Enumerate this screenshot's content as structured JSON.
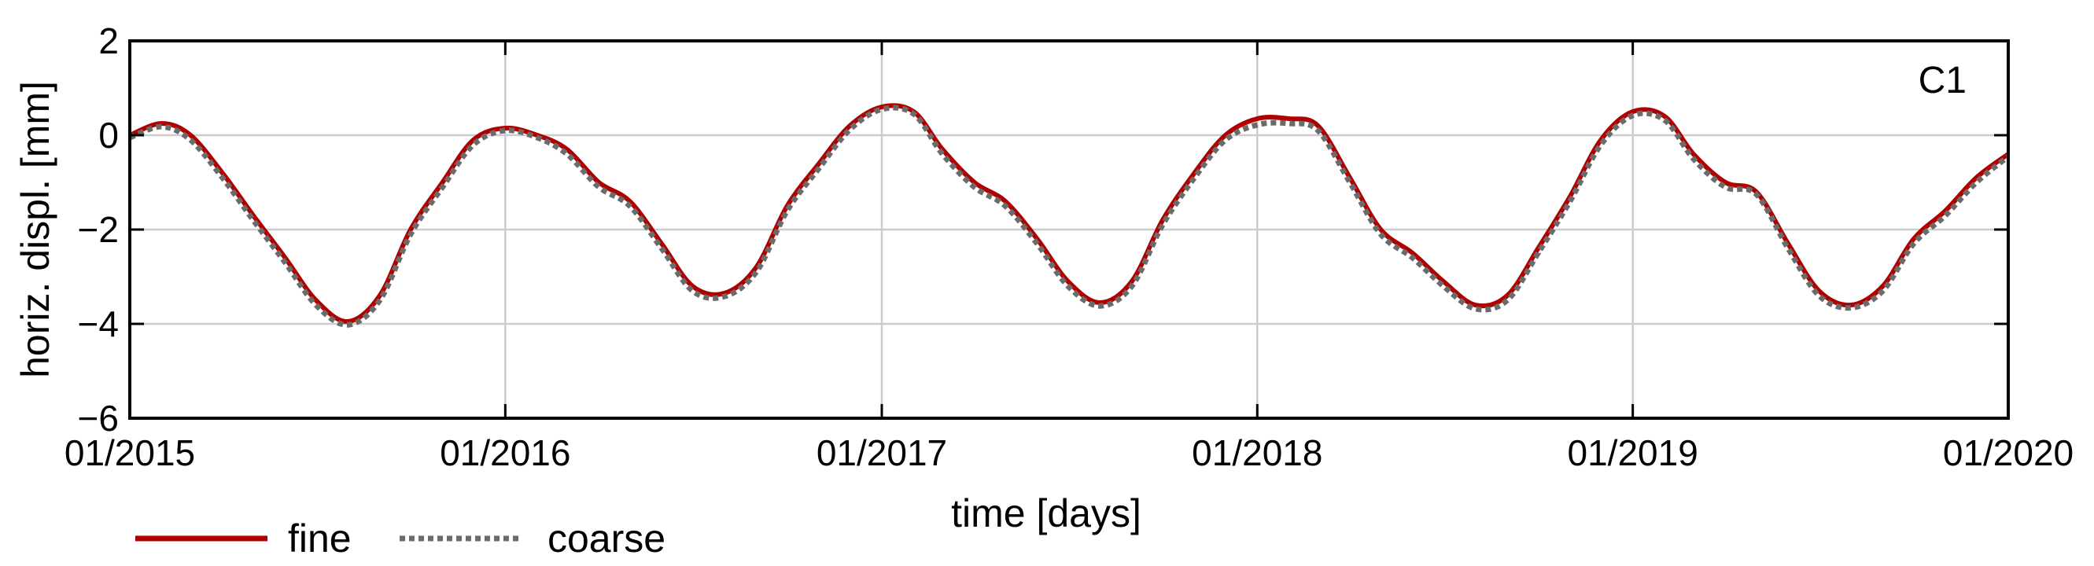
{
  "chart_data": {
    "type": "line",
    "panel_label": "C1",
    "xlabel": "time [days]",
    "ylabel": "horiz. displ. [mm]",
    "xlim": [
      "2015-01-01",
      "2020-01-01"
    ],
    "ylim": [
      -6,
      2
    ],
    "x_ticks": [
      "01/2015",
      "01/2016",
      "01/2017",
      "01/2018",
      "01/2019",
      "01/2020"
    ],
    "y_ticks": [
      "2",
      "0",
      "−2",
      "−4",
      "−6"
    ],
    "y_tick_values": [
      2,
      0,
      -2,
      -4,
      -6
    ],
    "grid": true,
    "legend_position": "bottom-left",
    "colors": {
      "fine": "#b00000",
      "coarse": "#6b6b6b"
    },
    "series": [
      {
        "name": "fine",
        "style": "solid",
        "x": [
          "2015-01-01",
          "2015-02-01",
          "2015-03-01",
          "2015-04-01",
          "2015-05-01",
          "2015-06-01",
          "2015-07-01",
          "2015-08-01",
          "2015-09-01",
          "2015-10-01",
          "2015-11-01",
          "2015-12-01",
          "2016-01-01",
          "2016-02-01",
          "2016-03-01",
          "2016-04-01",
          "2016-05-01",
          "2016-06-01",
          "2016-07-01",
          "2016-08-01",
          "2016-09-01",
          "2016-10-01",
          "2016-11-01",
          "2016-12-01",
          "2017-01-01",
          "2017-02-01",
          "2017-03-01",
          "2017-04-01",
          "2017-05-01",
          "2017-06-01",
          "2017-07-01",
          "2017-08-01",
          "2017-09-01",
          "2017-10-01",
          "2017-11-01",
          "2017-12-01",
          "2018-01-01",
          "2018-02-01",
          "2018-03-01",
          "2018-04-01",
          "2018-05-01",
          "2018-06-01",
          "2018-07-01",
          "2018-08-01",
          "2018-09-01",
          "2018-10-01",
          "2018-11-01",
          "2018-12-01",
          "2019-01-01",
          "2019-02-01",
          "2019-03-01",
          "2019-04-01",
          "2019-05-01",
          "2019-06-01",
          "2019-07-01",
          "2019-08-01",
          "2019-09-01",
          "2019-10-01",
          "2019-11-01",
          "2019-12-01",
          "2020-01-01"
        ],
        "y": [
          0.0,
          0.25,
          0.0,
          -0.8,
          -1.7,
          -2.6,
          -3.5,
          -3.95,
          -3.4,
          -2.0,
          -1.0,
          -0.1,
          0.15,
          0.0,
          -0.3,
          -1.0,
          -1.4,
          -2.3,
          -3.2,
          -3.35,
          -2.8,
          -1.5,
          -0.6,
          0.2,
          0.6,
          0.5,
          -0.3,
          -1.0,
          -1.4,
          -2.2,
          -3.1,
          -3.55,
          -3.1,
          -1.8,
          -0.8,
          0.0,
          0.35,
          0.35,
          0.2,
          -0.9,
          -2.0,
          -2.5,
          -3.1,
          -3.6,
          -3.4,
          -2.4,
          -1.3,
          -0.1,
          0.5,
          0.4,
          -0.4,
          -1.0,
          -1.2,
          -2.3,
          -3.3,
          -3.6,
          -3.2,
          -2.2,
          -1.6,
          -0.9,
          -0.4
        ]
      },
      {
        "name": "coarse",
        "style": "dotted",
        "x": [
          "2015-01-01",
          "2015-02-01",
          "2015-03-01",
          "2015-04-01",
          "2015-05-01",
          "2015-06-01",
          "2015-07-01",
          "2015-08-01",
          "2015-09-01",
          "2015-10-01",
          "2015-11-01",
          "2015-12-01",
          "2016-01-01",
          "2016-02-01",
          "2016-03-01",
          "2016-04-01",
          "2016-05-01",
          "2016-06-01",
          "2016-07-01",
          "2016-08-01",
          "2016-09-01",
          "2016-10-01",
          "2016-11-01",
          "2016-12-01",
          "2017-01-01",
          "2017-02-01",
          "2017-03-01",
          "2017-04-01",
          "2017-05-01",
          "2017-06-01",
          "2017-07-01",
          "2017-08-01",
          "2017-09-01",
          "2017-10-01",
          "2017-11-01",
          "2017-12-01",
          "2018-01-01",
          "2018-02-01",
          "2018-03-01",
          "2018-04-01",
          "2018-05-01",
          "2018-06-01",
          "2018-07-01",
          "2018-08-01",
          "2018-09-01",
          "2018-10-01",
          "2018-11-01",
          "2018-12-01",
          "2019-01-01",
          "2019-02-01",
          "2019-03-01",
          "2019-04-01",
          "2019-05-01",
          "2019-06-01",
          "2019-07-01",
          "2019-08-01",
          "2019-09-01",
          "2019-10-01",
          "2019-11-01",
          "2019-12-01",
          "2020-01-01"
        ],
        "y": [
          -0.05,
          0.18,
          -0.1,
          -0.9,
          -1.8,
          -2.7,
          -3.6,
          -4.02,
          -3.5,
          -2.1,
          -1.1,
          -0.2,
          0.1,
          -0.05,
          -0.4,
          -1.1,
          -1.5,
          -2.4,
          -3.3,
          -3.42,
          -2.9,
          -1.6,
          -0.7,
          0.12,
          0.55,
          0.45,
          -0.4,
          -1.1,
          -1.5,
          -2.3,
          -3.2,
          -3.62,
          -3.2,
          -1.9,
          -0.9,
          -0.1,
          0.22,
          0.25,
          0.1,
          -1.0,
          -2.1,
          -2.6,
          -3.2,
          -3.68,
          -3.5,
          -2.5,
          -1.4,
          -0.2,
          0.42,
          0.32,
          -0.5,
          -1.1,
          -1.25,
          -2.4,
          -3.4,
          -3.66,
          -3.3,
          -2.3,
          -1.7,
          -1.0,
          -0.45
        ]
      }
    ]
  }
}
